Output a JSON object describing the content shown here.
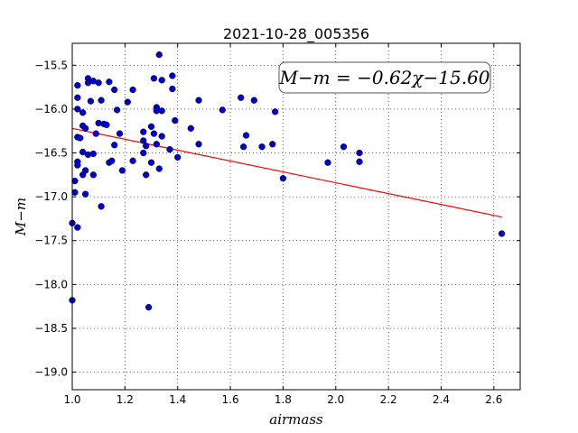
{
  "chart_data": {
    "type": "scatter",
    "title": "2021-10-28_005356",
    "xlabel": "airmass",
    "ylabel": "M−m",
    "xlim": [
      1.0,
      2.7
    ],
    "ylim": [
      -19.2,
      -15.25
    ],
    "y_inverted": true,
    "grid": true,
    "x_ticks": [
      "1.0",
      "1.2",
      "1.4",
      "1.6",
      "1.8",
      "2.0",
      "2.2",
      "2.4",
      "2.6"
    ],
    "y_ticks": [
      "−15.5",
      "−16.0",
      "−16.5",
      "−17.0",
      "−17.5",
      "−18.0",
      "−18.5",
      "−19.0"
    ],
    "annotation": "M−m = −0.62χ−15.60",
    "marker_color": "#0000cc",
    "fit_color": "#ff0000",
    "fit": {
      "slope": -0.62,
      "intercept": -15.6,
      "x_range": [
        1.0,
        2.63
      ]
    },
    "points": [
      {
        "x": 1.0,
        "y": -17.3
      },
      {
        "x": 1.0,
        "y": -18.18
      },
      {
        "x": 1.01,
        "y": -16.95
      },
      {
        "x": 1.01,
        "y": -16.82
      },
      {
        "x": 1.02,
        "y": -15.73
      },
      {
        "x": 1.02,
        "y": -15.87
      },
      {
        "x": 1.02,
        "y": -16.0
      },
      {
        "x": 1.02,
        "y": -16.32
      },
      {
        "x": 1.03,
        "y": -16.33
      },
      {
        "x": 1.02,
        "y": -16.6
      },
      {
        "x": 1.02,
        "y": -16.64
      },
      {
        "x": 1.02,
        "y": -17.35
      },
      {
        "x": 1.04,
        "y": -16.04
      },
      {
        "x": 1.04,
        "y": -16.19
      },
      {
        "x": 1.04,
        "y": -16.49
      },
      {
        "x": 1.04,
        "y": -16.75
      },
      {
        "x": 1.05,
        "y": -16.22
      },
      {
        "x": 1.05,
        "y": -16.7
      },
      {
        "x": 1.05,
        "y": -16.97
      },
      {
        "x": 1.06,
        "y": -15.65
      },
      {
        "x": 1.06,
        "y": -15.7
      },
      {
        "x": 1.06,
        "y": -16.52
      },
      {
        "x": 1.07,
        "y": -15.91
      },
      {
        "x": 1.08,
        "y": -15.68
      },
      {
        "x": 1.08,
        "y": -16.51
      },
      {
        "x": 1.08,
        "y": -16.75
      },
      {
        "x": 1.09,
        "y": -16.28
      },
      {
        "x": 1.1,
        "y": -15.7
      },
      {
        "x": 1.1,
        "y": -16.16
      },
      {
        "x": 1.11,
        "y": -15.9
      },
      {
        "x": 1.11,
        "y": -17.11
      },
      {
        "x": 1.12,
        "y": -16.17
      },
      {
        "x": 1.13,
        "y": -16.18
      },
      {
        "x": 1.14,
        "y": -15.69
      },
      {
        "x": 1.14,
        "y": -16.61
      },
      {
        "x": 1.15,
        "y": -16.59
      },
      {
        "x": 1.16,
        "y": -15.78
      },
      {
        "x": 1.16,
        "y": -16.41
      },
      {
        "x": 1.17,
        "y": -16.01
      },
      {
        "x": 1.18,
        "y": -16.28
      },
      {
        "x": 1.19,
        "y": -16.7
      },
      {
        "x": 1.21,
        "y": -15.92
      },
      {
        "x": 1.23,
        "y": -15.78
      },
      {
        "x": 1.23,
        "y": -16.59
      },
      {
        "x": 1.27,
        "y": -16.26
      },
      {
        "x": 1.27,
        "y": -16.36
      },
      {
        "x": 1.27,
        "y": -16.5
      },
      {
        "x": 1.28,
        "y": -16.42
      },
      {
        "x": 1.28,
        "y": -16.75
      },
      {
        "x": 1.29,
        "y": -18.26
      },
      {
        "x": 1.3,
        "y": -16.2
      },
      {
        "x": 1.3,
        "y": -16.61
      },
      {
        "x": 1.31,
        "y": -16.28
      },
      {
        "x": 1.31,
        "y": -15.65
      },
      {
        "x": 1.32,
        "y": -15.98
      },
      {
        "x": 1.32,
        "y": -16.02
      },
      {
        "x": 1.32,
        "y": -16.4
      },
      {
        "x": 1.33,
        "y": -15.38
      },
      {
        "x": 1.33,
        "y": -16.68
      },
      {
        "x": 1.34,
        "y": -15.67
      },
      {
        "x": 1.34,
        "y": -16.02
      },
      {
        "x": 1.34,
        "y": -16.31
      },
      {
        "x": 1.37,
        "y": -16.46
      },
      {
        "x": 1.38,
        "y": -15.62
      },
      {
        "x": 1.38,
        "y": -15.77
      },
      {
        "x": 1.39,
        "y": -16.13
      },
      {
        "x": 1.4,
        "y": -16.55
      },
      {
        "x": 1.45,
        "y": -16.22
      },
      {
        "x": 1.48,
        "y": -15.9
      },
      {
        "x": 1.48,
        "y": -16.4
      },
      {
        "x": 1.57,
        "y": -16.01
      },
      {
        "x": 1.64,
        "y": -15.87
      },
      {
        "x": 1.65,
        "y": -16.43
      },
      {
        "x": 1.66,
        "y": -16.3
      },
      {
        "x": 1.69,
        "y": -15.9
      },
      {
        "x": 1.72,
        "y": -16.43
      },
      {
        "x": 1.76,
        "y": -16.4
      },
      {
        "x": 1.77,
        "y": -16.03
      },
      {
        "x": 1.8,
        "y": -16.79
      },
      {
        "x": 1.97,
        "y": -16.61
      },
      {
        "x": 2.03,
        "y": -16.43
      },
      {
        "x": 2.09,
        "y": -16.5
      },
      {
        "x": 2.09,
        "y": -16.6
      },
      {
        "x": 2.63,
        "y": -17.42
      }
    ]
  }
}
